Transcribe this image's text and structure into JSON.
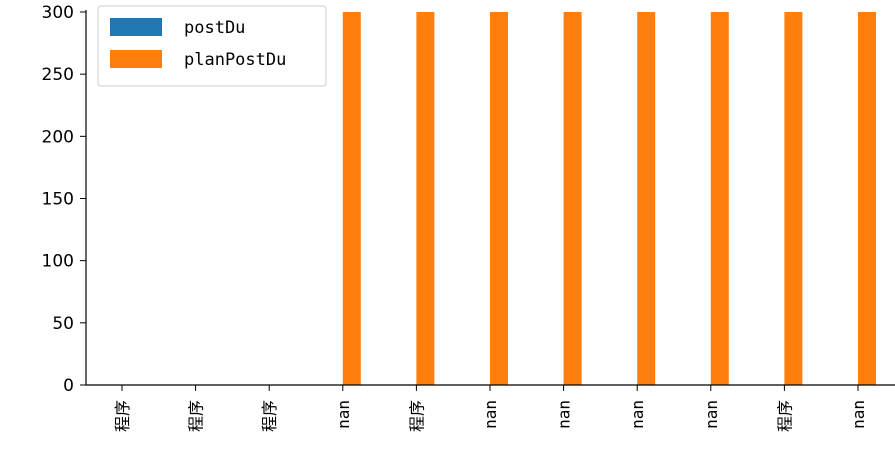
{
  "chart_data": {
    "type": "bar",
    "categories": [
      "程序",
      "程序",
      "程序",
      "nan",
      "程序",
      "nan",
      "nan",
      "nan",
      "nan",
      "程序",
      "nan"
    ],
    "series": [
      {
        "name": "postDu",
        "color": "#1f77b4",
        "values": [
          0,
          0,
          0,
          0,
          0,
          0,
          0,
          0,
          0,
          0,
          0
        ]
      },
      {
        "name": "planPostDu",
        "color": "#ff7f0e",
        "values": [
          0,
          0,
          0,
          300,
          300,
          300,
          300,
          300,
          300,
          300,
          300
        ]
      }
    ],
    "ylim": [
      0,
      300
    ],
    "yticks": [
      0,
      50,
      100,
      150,
      200,
      250,
      300
    ],
    "legend_position": "top-left",
    "grid": false
  }
}
